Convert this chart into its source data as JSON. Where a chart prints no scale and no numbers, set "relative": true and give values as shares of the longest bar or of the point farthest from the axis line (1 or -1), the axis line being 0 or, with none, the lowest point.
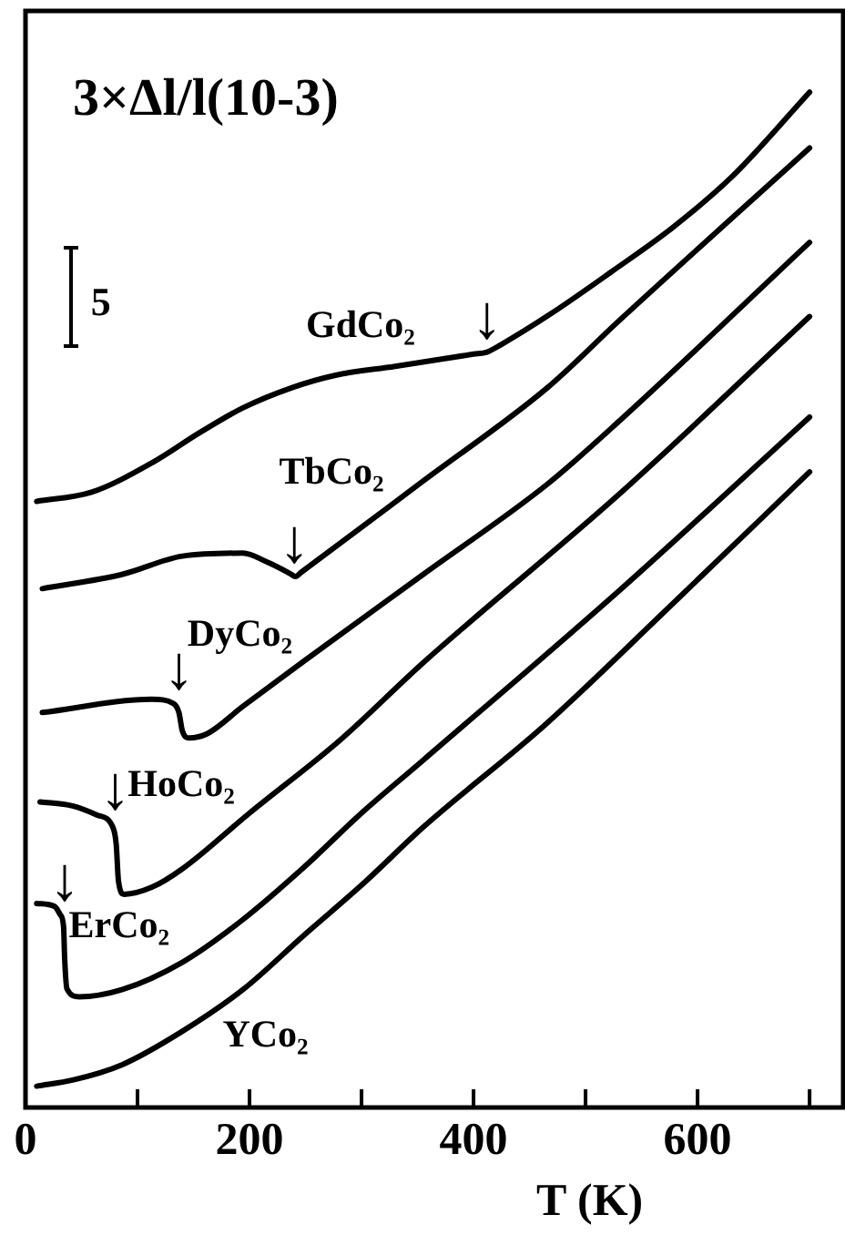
{
  "chart_data": {
    "type": "line",
    "relative": true,
    "ylabel": "3×Δl/l(10-3)",
    "xlabel": "T (K)",
    "xlim": [
      0,
      730
    ],
    "xticks": [
      0,
      {
        "value": 100,
        "label": null
      },
      200,
      {
        "value": 300,
        "label": null
      },
      400,
      {
        "value": 500,
        "label": null
      },
      600,
      {
        "value": 700,
        "label": null
      }
    ],
    "marker": "none",
    "annotations": [
      "5",
      {
        "text": "↓",
        "x": 412,
        "y": 0.744
      },
      {
        "text": "↓",
        "x": 240,
        "y": 0.523
      },
      {
        "text": "↓",
        "x": 137,
        "y": 0.398
      },
      {
        "text": "↓",
        "x": 80,
        "y": 0.28
      },
      {
        "text": "↓",
        "x": 35,
        "y": 0.19
      }
    ],
    "series": [
      {
        "name": "GdCo₂",
        "color": "#000000",
        "x": [
          10,
          59,
          113,
          156,
          194,
          238,
          276,
          330,
          400,
          412,
          424,
          468,
          523,
          577,
          631,
          700
        ],
        "values": [
          0.597,
          0.606,
          0.635,
          0.665,
          0.689,
          0.709,
          0.721,
          0.73,
          0.742,
          0.744,
          0.751,
          0.781,
          0.823,
          0.866,
          0.917,
          1
        ]
      },
      {
        "name": "TbCo₂",
        "color": "#000000",
        "x": [
          15,
          86,
          140,
          194,
          216,
          236,
          241,
          246,
          355,
          466,
          531,
          700
        ],
        "values": [
          0.511,
          0.525,
          0.543,
          0.546,
          0.537,
          0.526,
          0.523,
          0.527,
          0.617,
          0.709,
          0.776,
          0.945
        ]
      },
      {
        "name": "DyCo₂",
        "color": "#000000",
        "x": [
          15,
          113,
          132,
          137,
          140,
          146,
          162,
          194,
          249,
          355,
          466,
          531,
          700
        ],
        "values": [
          0.389,
          0.402,
          0.398,
          0.389,
          0.371,
          0.364,
          0.368,
          0.395,
          0.44,
          0.525,
          0.614,
          0.677,
          0.852
        ]
      },
      {
        "name": "HoCo₂",
        "color": "#000000",
        "x": [
          13,
          42,
          64,
          78,
          81,
          83,
          88,
          113,
          140,
          200,
          281,
          355,
          531,
          700
        ],
        "values": [
          0.301,
          0.297,
          0.288,
          0.276,
          0.259,
          0.223,
          0.21,
          0.217,
          0.235,
          0.29,
          0.362,
          0.438,
          0.605,
          0.779
        ]
      },
      {
        "name": "ErCo₂",
        "color": "#000000",
        "x": [
          10,
          26,
          31,
          34,
          35,
          37,
          48,
          86,
          140,
          194,
          249,
          298,
          355,
          531,
          700
        ],
        "values": [
          0.201,
          0.198,
          0.19,
          0.178,
          0.146,
          0.117,
          0.109,
          0.116,
          0.143,
          0.185,
          0.237,
          0.288,
          0.342,
          0.51,
          0.68
        ]
      },
      {
        "name": "YCo₂",
        "color": "#000000",
        "x": [
          10,
          42,
          86,
          140,
          194,
          249,
          303,
          355,
          464,
          572,
          700
        ],
        "values": [
          0.021,
          0.027,
          0.042,
          0.075,
          0.116,
          0.17,
          0.222,
          0.276,
          0.377,
          0.49,
          0.626
        ]
      }
    ]
  }
}
